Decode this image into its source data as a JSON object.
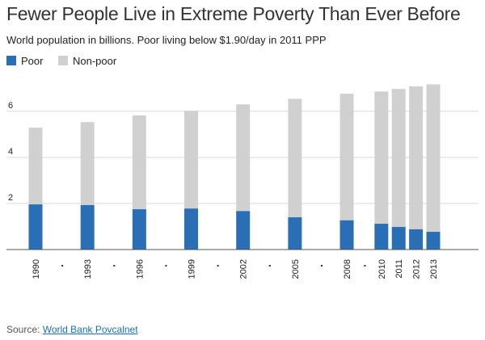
{
  "chart_data": {
    "type": "bar",
    "stacked": true,
    "title": "Fewer People Live in Extreme Poverty Than Ever Before",
    "subtitle": "World population in billions. Poor living below $1.90/day in 2011 PPP",
    "categories": [
      "1990",
      "1993",
      "1996",
      "1999",
      "2002",
      "2005",
      "2008",
      "2010",
      "2011",
      "2012",
      "2013"
    ],
    "series": [
      {
        "name": "Poor",
        "color": "#2a6fb5",
        "values": [
          1.96,
          1.93,
          1.75,
          1.78,
          1.67,
          1.4,
          1.27,
          1.12,
          0.98,
          0.88,
          0.77
        ]
      },
      {
        "name": "Non-poor",
        "color": "#d0d0d0",
        "values": [
          3.33,
          3.6,
          4.07,
          4.24,
          4.63,
          5.14,
          5.49,
          5.74,
          5.99,
          6.2,
          6.4
        ]
      }
    ],
    "ylim": [
      0,
      7.5
    ],
    "yticks": [
      2,
      4,
      6
    ],
    "grid": true,
    "legend": "top-left",
    "xlabel": "",
    "ylabel": ""
  },
  "source": {
    "label": "Source:",
    "link_text": "World Bank Povcalnet"
  }
}
